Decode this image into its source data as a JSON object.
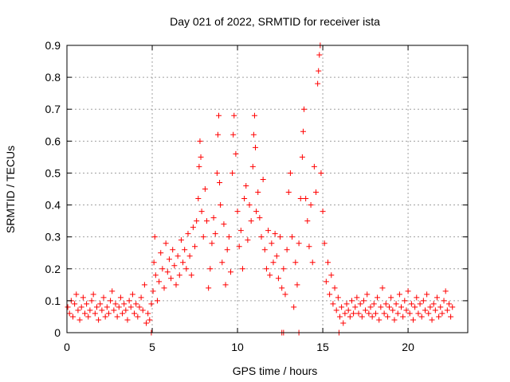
{
  "chart_data": {
    "type": "scatter",
    "title": "Day 021 of 2022, SRMTID for receiver ista",
    "xlabel": "GPS time / hours",
    "ylabel": "SRMTID / TECUs",
    "xlim": [
      0,
      23.5
    ],
    "ylim": [
      0,
      0.9
    ],
    "xticks": [
      0,
      5,
      10,
      15,
      20
    ],
    "yticks": [
      0,
      0.1,
      0.2,
      0.3,
      0.4,
      0.5,
      0.6,
      0.7,
      0.8,
      0.9
    ],
    "xtick_labels": [
      "0",
      "5",
      "10",
      "15",
      "20"
    ],
    "ytick_labels": [
      "0",
      "0.1",
      "0.2",
      "0.3",
      "0.4",
      "0.5",
      "0.6",
      "0.7",
      "0.8",
      "0.9"
    ],
    "grid": true,
    "marker": "plus",
    "color": "#ff0000",
    "series": [
      {
        "name": "SRMTID",
        "points": [
          [
            0.05,
            0.08
          ],
          [
            0.15,
            0.06
          ],
          [
            0.25,
            0.1
          ],
          [
            0.35,
            0.05
          ],
          [
            0.45,
            0.09
          ],
          [
            0.55,
            0.12
          ],
          [
            0.65,
            0.07
          ],
          [
            0.75,
            0.04
          ],
          [
            0.85,
            0.08
          ],
          [
            0.95,
            0.11
          ],
          [
            1.05,
            0.06
          ],
          [
            1.15,
            0.09
          ],
          [
            1.25,
            0.05
          ],
          [
            1.35,
            0.07
          ],
          [
            1.45,
            0.1
          ],
          [
            1.55,
            0.12
          ],
          [
            1.65,
            0.06
          ],
          [
            1.75,
            0.08
          ],
          [
            1.85,
            0.04
          ],
          [
            1.95,
            0.09
          ],
          [
            2.05,
            0.07
          ],
          [
            2.15,
            0.11
          ],
          [
            2.25,
            0.05
          ],
          [
            2.35,
            0.08
          ],
          [
            2.45,
            0.06
          ],
          [
            2.55,
            0.1
          ],
          [
            2.65,
            0.13
          ],
          [
            2.75,
            0.07
          ],
          [
            2.85,
            0.09
          ],
          [
            2.95,
            0.05
          ],
          [
            3.05,
            0.08
          ],
          [
            3.15,
            0.11
          ],
          [
            3.25,
            0.06
          ],
          [
            3.35,
            0.09
          ],
          [
            3.45,
            0.07
          ],
          [
            3.55,
            0.04
          ],
          [
            3.65,
            0.1
          ],
          [
            3.75,
            0.08
          ],
          [
            3.85,
            0.12
          ],
          [
            3.95,
            0.06
          ],
          [
            4.05,
            0.09
          ],
          [
            4.15,
            0.05
          ],
          [
            4.25,
            0.08
          ],
          [
            4.35,
            0.11
          ],
          [
            4.45,
            0.07
          ],
          [
            4.55,
            0.15
          ],
          [
            4.65,
            0.03
          ],
          [
            4.75,
            0.06
          ],
          [
            4.85,
            0.04
          ],
          [
            4.95,
            0.09
          ],
          [
            5.05,
            0.13
          ],
          [
            5.1,
            0.22
          ],
          [
            5.15,
            0.3
          ],
          [
            5.2,
            0.18
          ],
          [
            5.3,
            0.1
          ],
          [
            5.4,
            0.16
          ],
          [
            5.5,
            0.25
          ],
          [
            5.6,
            0.2
          ],
          [
            5.7,
            0.14
          ],
          [
            5.8,
            0.28
          ],
          [
            5.9,
            0.19
          ],
          [
            6.0,
            0.23
          ],
          [
            6.1,
            0.17
          ],
          [
            6.2,
            0.26
          ],
          [
            6.3,
            0.21
          ],
          [
            6.4,
            0.15
          ],
          [
            6.5,
            0.24
          ],
          [
            6.6,
            0.18
          ],
          [
            6.7,
            0.29
          ],
          [
            6.8,
            0.22
          ],
          [
            6.9,
            0.26
          ],
          [
            7.0,
            0.2
          ],
          [
            7.1,
            0.31
          ],
          [
            7.2,
            0.24
          ],
          [
            7.3,
            0.18
          ],
          [
            7.4,
            0.33
          ],
          [
            7.5,
            0.27
          ],
          [
            7.6,
            0.35
          ],
          [
            7.7,
            0.42
          ],
          [
            7.75,
            0.52
          ],
          [
            7.8,
            0.6
          ],
          [
            7.85,
            0.55
          ],
          [
            7.9,
            0.38
          ],
          [
            8.0,
            0.3
          ],
          [
            8.1,
            0.45
          ],
          [
            8.2,
            0.35
          ],
          [
            8.3,
            0.14
          ],
          [
            8.4,
            0.2
          ],
          [
            8.5,
            0.28
          ],
          [
            8.6,
            0.36
          ],
          [
            8.7,
            0.31
          ],
          [
            8.8,
            0.5
          ],
          [
            8.85,
            0.62
          ],
          [
            8.9,
            0.68
          ],
          [
            8.95,
            0.47
          ],
          [
            9.0,
            0.4
          ],
          [
            9.1,
            0.22
          ],
          [
            9.2,
            0.34
          ],
          [
            9.3,
            0.15
          ],
          [
            9.4,
            0.26
          ],
          [
            9.5,
            0.3
          ],
          [
            9.6,
            0.19
          ],
          [
            9.7,
            0.5
          ],
          [
            9.75,
            0.62
          ],
          [
            9.8,
            0.68
          ],
          [
            9.9,
            0.56
          ],
          [
            10.0,
            0.38
          ],
          [
            10.1,
            0.27
          ],
          [
            10.2,
            0.32
          ],
          [
            10.3,
            0.2
          ],
          [
            10.4,
            0.42
          ],
          [
            10.5,
            0.46
          ],
          [
            10.6,
            0.29
          ],
          [
            10.7,
            0.4
          ],
          [
            10.8,
            0.35
          ],
          [
            10.9,
            0.52
          ],
          [
            10.95,
            0.62
          ],
          [
            11.0,
            0.68
          ],
          [
            11.05,
            0.58
          ],
          [
            11.1,
            0.38
          ],
          [
            11.2,
            0.44
          ],
          [
            11.3,
            0.36
          ],
          [
            11.4,
            0.3
          ],
          [
            11.5,
            0.48
          ],
          [
            11.6,
            0.26
          ],
          [
            11.7,
            0.2
          ],
          [
            11.8,
            0.32
          ],
          [
            11.9,
            0.18
          ],
          [
            12.0,
            0.28
          ],
          [
            12.1,
            0.22
          ],
          [
            12.2,
            0.31
          ],
          [
            12.3,
            0.24
          ],
          [
            12.4,
            0.17
          ],
          [
            12.5,
            0.3
          ],
          [
            12.6,
            0.14
          ],
          [
            12.7,
            0.2
          ],
          [
            12.8,
            0.12
          ],
          [
            12.9,
            0.26
          ],
          [
            13.0,
            0.44
          ],
          [
            13.1,
            0.5
          ],
          [
            13.2,
            0.3
          ],
          [
            13.3,
            0.08
          ],
          [
            13.4,
            0.22
          ],
          [
            13.5,
            0.15
          ],
          [
            13.6,
            0.28
          ],
          [
            13.7,
            0.42
          ],
          [
            13.8,
            0.55
          ],
          [
            13.85,
            0.63
          ],
          [
            13.9,
            0.7
          ],
          [
            14.0,
            0.42
          ],
          [
            14.1,
            0.35
          ],
          [
            14.2,
            0.27
          ],
          [
            14.3,
            0.4
          ],
          [
            14.4,
            0.22
          ],
          [
            14.5,
            0.52
          ],
          [
            14.6,
            0.44
          ],
          [
            14.7,
            0.78
          ],
          [
            14.75,
            0.82
          ],
          [
            14.8,
            0.87
          ],
          [
            14.85,
            0.9
          ],
          [
            14.9,
            0.5
          ],
          [
            15.0,
            0.38
          ],
          [
            15.1,
            0.28
          ],
          [
            15.2,
            0.16
          ],
          [
            15.3,
            0.22
          ],
          [
            15.4,
            0.12
          ],
          [
            15.5,
            0.18
          ],
          [
            15.6,
            0.09
          ],
          [
            15.7,
            0.14
          ],
          [
            15.8,
            0.07
          ],
          [
            15.9,
            0.11
          ],
          [
            16.0,
            0.05
          ],
          [
            16.1,
            0.08
          ],
          [
            16.2,
            0.03
          ],
          [
            16.3,
            0.06
          ],
          [
            16.4,
            0.09
          ],
          [
            16.5,
            0.07
          ],
          [
            16.6,
            0.05
          ],
          [
            16.7,
            0.1
          ],
          [
            16.8,
            0.06
          ],
          [
            16.9,
            0.08
          ],
          [
            17.0,
            0.11
          ],
          [
            17.1,
            0.06
          ],
          [
            17.2,
            0.09
          ],
          [
            17.3,
            0.05
          ],
          [
            17.4,
            0.1
          ],
          [
            17.5,
            0.07
          ],
          [
            17.6,
            0.12
          ],
          [
            17.7,
            0.06
          ],
          [
            17.8,
            0.08
          ],
          [
            17.9,
            0.05
          ],
          [
            18.0,
            0.09
          ],
          [
            18.1,
            0.06
          ],
          [
            18.2,
            0.11
          ],
          [
            18.3,
            0.04
          ],
          [
            18.4,
            0.08
          ],
          [
            18.5,
            0.14
          ],
          [
            18.6,
            0.06
          ],
          [
            18.7,
            0.09
          ],
          [
            18.8,
            0.05
          ],
          [
            18.9,
            0.08
          ],
          [
            19.0,
            0.11
          ],
          [
            19.1,
            0.07
          ],
          [
            19.2,
            0.04
          ],
          [
            19.3,
            0.09
          ],
          [
            19.4,
            0.06
          ],
          [
            19.5,
            0.12
          ],
          [
            19.6,
            0.08
          ],
          [
            19.7,
            0.05
          ],
          [
            19.8,
            0.1
          ],
          [
            19.9,
            0.07
          ],
          [
            20.0,
            0.13
          ],
          [
            20.1,
            0.06
          ],
          [
            20.2,
            0.09
          ],
          [
            20.3,
            0.04
          ],
          [
            20.4,
            0.08
          ],
          [
            20.5,
            0.11
          ],
          [
            20.6,
            0.06
          ],
          [
            20.7,
            0.09
          ],
          [
            20.8,
            0.05
          ],
          [
            20.9,
            0.1
          ],
          [
            21.0,
            0.07
          ],
          [
            21.1,
            0.12
          ],
          [
            21.2,
            0.06
          ],
          [
            21.3,
            0.08
          ],
          [
            21.4,
            0.04
          ],
          [
            21.5,
            0.09
          ],
          [
            21.6,
            0.07
          ],
          [
            21.7,
            0.11
          ],
          [
            21.8,
            0.05
          ],
          [
            21.9,
            0.08
          ],
          [
            22.0,
            0.06
          ],
          [
            22.1,
            0.1
          ],
          [
            22.2,
            0.13
          ],
          [
            22.3,
            0.07
          ],
          [
            22.4,
            0.09
          ],
          [
            22.5,
            0.05
          ],
          [
            22.6,
            0.08
          ],
          [
            4.95,
            0.0
          ],
          [
            12.6,
            0.0
          ],
          [
            12.7,
            0.0
          ],
          [
            13.6,
            0.0
          ],
          [
            15.95,
            0.0
          ]
        ]
      }
    ]
  }
}
